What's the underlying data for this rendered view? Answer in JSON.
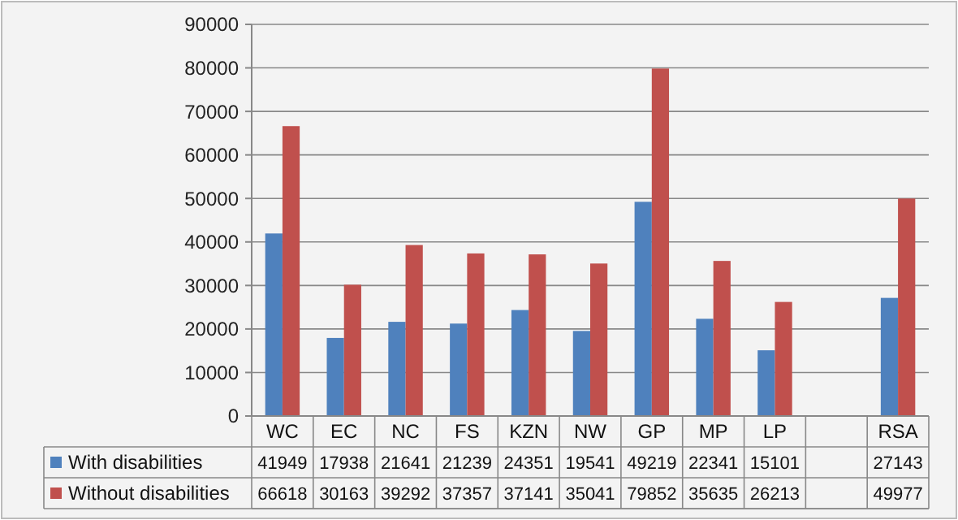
{
  "chart_data": {
    "type": "bar",
    "categories": [
      "WC",
      "EC",
      "NC",
      "FS",
      "KZN",
      "NW",
      "GP",
      "MP",
      "LP",
      null,
      "RSA"
    ],
    "series": [
      {
        "name": "With disabilities",
        "color": "#4f81bd",
        "values": [
          41949,
          17938,
          21641,
          21239,
          24351,
          19541,
          49219,
          22341,
          15101,
          null,
          27143
        ]
      },
      {
        "name": "Without disabilities",
        "color": "#c0504d",
        "values": [
          66618,
          30163,
          39292,
          37357,
          37141,
          35041,
          79852,
          35635,
          26213,
          null,
          49977
        ]
      }
    ],
    "ylim": [
      0,
      90000
    ],
    "yticks": [
      0,
      10000,
      20000,
      30000,
      40000,
      50000,
      60000,
      70000,
      80000,
      90000
    ],
    "grid": "y",
    "legend": "bottom",
    "data_labels": true
  }
}
